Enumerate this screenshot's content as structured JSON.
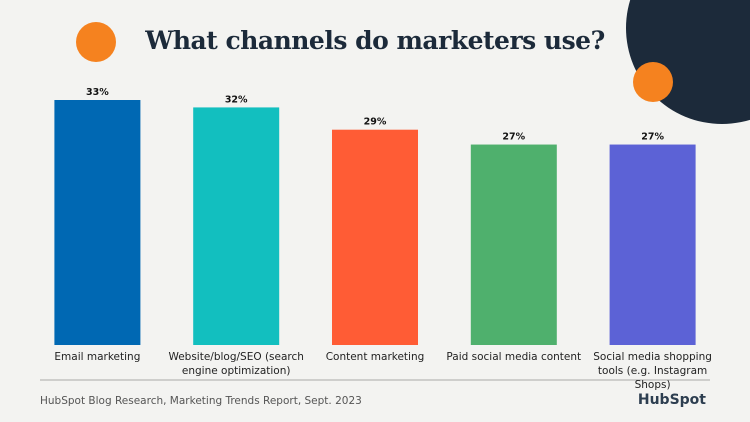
{
  "chart_data": {
    "type": "bar",
    "title": "What channels do marketers use?",
    "categories": [
      "Email marketing",
      "Website/blog/SEO (search engine optimization)",
      "Content marketing",
      "Paid social media content",
      "Social media shopping tools (e.g. Instagram Shops)"
    ],
    "values": [
      33,
      32,
      29,
      27,
      27
    ],
    "value_labels": [
      "33%",
      "32%",
      "29%",
      "27%",
      "27%"
    ],
    "colors": [
      "#0068b3",
      "#12bfbf",
      "#ff5c35",
      "#4fb06d",
      "#5c62d6"
    ],
    "source": "HubSpot Blog Research, Marketing Trends Report, Sept. 2023",
    "logo": "HubSpot"
  }
}
